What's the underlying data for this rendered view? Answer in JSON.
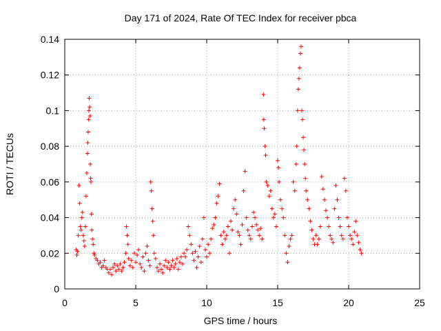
{
  "chart_data": {
    "type": "scatter",
    "title": "Day 171 of 2024, Rate Of TEC Index for receiver pbca",
    "xlabel": "GPS time / hours",
    "ylabel": "ROTI / TECUs",
    "xlim": [
      0,
      25
    ],
    "ylim": [
      0,
      0.14
    ],
    "xticks": [
      0,
      5,
      10,
      15,
      20,
      25
    ],
    "xtick_labels": [
      "0",
      "5",
      "10",
      "15",
      "20",
      "25"
    ],
    "yticks": [
      0,
      0.02,
      0.04,
      0.06,
      0.08,
      0.1,
      0.12,
      0.14
    ],
    "ytick_labels": [
      "0",
      "0.02",
      "0.04",
      "0.06",
      "0.08",
      "0.1",
      "0.12",
      "0.14"
    ],
    "grid": true,
    "marker": "plus",
    "color": "#ff0000",
    "series": [
      {
        "name": "ROTI",
        "points": [
          [
            0.8,
            0.022
          ],
          [
            0.85,
            0.019
          ],
          [
            0.9,
            0.021
          ],
          [
            0.95,
            0.03
          ],
          [
            1.0,
            0.058
          ],
          [
            1.05,
            0.048
          ],
          [
            1.1,
            0.035
          ],
          [
            1.15,
            0.033
          ],
          [
            1.2,
            0.04
          ],
          [
            1.25,
            0.043
          ],
          [
            1.3,
            0.03
          ],
          [
            1.35,
            0.027
          ],
          [
            1.4,
            0.024
          ],
          [
            1.45,
            0.035
          ],
          [
            1.5,
            0.052
          ],
          [
            1.55,
            0.065
          ],
          [
            1.6,
            0.076
          ],
          [
            1.62,
            0.082
          ],
          [
            1.65,
            0.088
          ],
          [
            1.68,
            0.095
          ],
          [
            1.7,
            0.1
          ],
          [
            1.72,
            0.107
          ],
          [
            1.75,
            0.102
          ],
          [
            1.78,
            0.097
          ],
          [
            1.8,
            0.07
          ],
          [
            1.82,
            0.062
          ],
          [
            1.85,
            0.06
          ],
          [
            1.88,
            0.042
          ],
          [
            1.9,
            0.033
          ],
          [
            1.95,
            0.028
          ],
          [
            2.0,
            0.025
          ],
          [
            2.05,
            0.02
          ],
          [
            2.1,
            0.019
          ],
          [
            2.2,
            0.017
          ],
          [
            2.3,
            0.016
          ],
          [
            2.4,
            0.014
          ],
          [
            2.5,
            0.015
          ],
          [
            2.6,
            0.012
          ],
          [
            2.7,
            0.013
          ],
          [
            2.8,
            0.016
          ],
          [
            2.9,
            0.012
          ],
          [
            3.0,
            0.011
          ],
          [
            3.1,
            0.009
          ],
          [
            3.2,
            0.011
          ],
          [
            3.3,
            0.008
          ],
          [
            3.4,
            0.012
          ],
          [
            3.5,
            0.014
          ],
          [
            3.6,
            0.01
          ],
          [
            3.7,
            0.013
          ],
          [
            3.8,
            0.011
          ],
          [
            3.9,
            0.014
          ],
          [
            4.0,
            0.01
          ],
          [
            4.1,
            0.012
          ],
          [
            4.2,
            0.015
          ],
          [
            4.3,
            0.02
          ],
          [
            4.35,
            0.035
          ],
          [
            4.4,
            0.03
          ],
          [
            4.45,
            0.025
          ],
          [
            4.5,
            0.017
          ],
          [
            4.6,
            0.013
          ],
          [
            4.7,
            0.016
          ],
          [
            4.8,
            0.012
          ],
          [
            4.9,
            0.02
          ],
          [
            5.0,
            0.015
          ],
          [
            5.1,
            0.019
          ],
          [
            5.2,
            0.022
          ],
          [
            5.3,
            0.014
          ],
          [
            5.4,
            0.012
          ],
          [
            5.5,
            0.018
          ],
          [
            5.6,
            0.01
          ],
          [
            5.7,
            0.02
          ],
          [
            5.8,
            0.024
          ],
          [
            5.9,
            0.016
          ],
          [
            6.0,
            0.013
          ],
          [
            6.05,
            0.06
          ],
          [
            6.1,
            0.055
          ],
          [
            6.15,
            0.045
          ],
          [
            6.2,
            0.038
          ],
          [
            6.25,
            0.03
          ],
          [
            6.3,
            0.02
          ],
          [
            6.4,
            0.017
          ],
          [
            6.5,
            0.012
          ],
          [
            6.6,
            0.01
          ],
          [
            6.7,
            0.014
          ],
          [
            6.8,
            0.011
          ],
          [
            6.9,
            0.009
          ],
          [
            7.0,
            0.013
          ],
          [
            7.1,
            0.016
          ],
          [
            7.2,
            0.012
          ],
          [
            7.3,
            0.015
          ],
          [
            7.4,
            0.011
          ],
          [
            7.5,
            0.013
          ],
          [
            7.6,
            0.016
          ],
          [
            7.7,
            0.012
          ],
          [
            7.8,
            0.014
          ],
          [
            7.9,
            0.017
          ],
          [
            8.0,
            0.011
          ],
          [
            8.1,
            0.015
          ],
          [
            8.2,
            0.018
          ],
          [
            8.3,
            0.014
          ],
          [
            8.4,
            0.02
          ],
          [
            8.5,
            0.018
          ],
          [
            8.6,
            0.022
          ],
          [
            8.7,
            0.035
          ],
          [
            8.8,
            0.03
          ],
          [
            8.9,
            0.025
          ],
          [
            9.0,
            0.02
          ],
          [
            9.1,
            0.016
          ],
          [
            9.2,
            0.021
          ],
          [
            9.3,
            0.012
          ],
          [
            9.4,
            0.018
          ],
          [
            9.5,
            0.024
          ],
          [
            9.6,
            0.015
          ],
          [
            9.7,
            0.028
          ],
          [
            9.8,
            0.04
          ],
          [
            9.9,
            0.022
          ],
          [
            10.0,
            0.018
          ],
          [
            10.1,
            0.025
          ],
          [
            10.2,
            0.02
          ],
          [
            10.3,
            0.028
          ],
          [
            10.4,
            0.034
          ],
          [
            10.5,
            0.036
          ],
          [
            10.6,
            0.04
          ],
          [
            10.7,
            0.048
          ],
          [
            10.8,
            0.052
          ],
          [
            10.9,
            0.059
          ],
          [
            11.0,
            0.03
          ],
          [
            11.1,
            0.025
          ],
          [
            11.2,
            0.032
          ],
          [
            11.3,
            0.028
          ],
          [
            11.4,
            0.03
          ],
          [
            11.5,
            0.035
          ],
          [
            11.6,
            0.02
          ],
          [
            11.7,
            0.038
          ],
          [
            11.8,
            0.033
          ],
          [
            11.9,
            0.045
          ],
          [
            12.0,
            0.05
          ],
          [
            12.1,
            0.042
          ],
          [
            12.2,
            0.032
          ],
          [
            12.3,
            0.03
          ],
          [
            12.4,
            0.025
          ],
          [
            12.5,
            0.036
          ],
          [
            12.6,
            0.055
          ],
          [
            12.7,
            0.066
          ],
          [
            12.8,
            0.04
          ],
          [
            12.9,
            0.033
          ],
          [
            13.0,
            0.03
          ],
          [
            13.1,
            0.028
          ],
          [
            13.2,
            0.035
          ],
          [
            13.3,
            0.043
          ],
          [
            13.4,
            0.04
          ],
          [
            13.5,
            0.036
          ],
          [
            13.6,
            0.033
          ],
          [
            13.7,
            0.03
          ],
          [
            13.8,
            0.034
          ],
          [
            13.9,
            0.028
          ],
          [
            14.0,
            0.109
          ],
          [
            14.02,
            0.095
          ],
          [
            14.05,
            0.09
          ],
          [
            14.1,
            0.08
          ],
          [
            14.15,
            0.075
          ],
          [
            14.2,
            0.06
          ],
          [
            14.3,
            0.058
          ],
          [
            14.4,
            0.052
          ],
          [
            14.5,
            0.055
          ],
          [
            14.6,
            0.045
          ],
          [
            14.7,
            0.04
          ],
          [
            14.8,
            0.042
          ],
          [
            14.9,
            0.035
          ],
          [
            15.0,
            0.072
          ],
          [
            15.05,
            0.068
          ],
          [
            15.1,
            0.06
          ],
          [
            15.2,
            0.05
          ],
          [
            15.3,
            0.045
          ],
          [
            15.4,
            0.04
          ],
          [
            15.5,
            0.03
          ],
          [
            15.6,
            0.02
          ],
          [
            15.7,
            0.015
          ],
          [
            15.8,
            0.024
          ],
          [
            15.9,
            0.028
          ],
          [
            16.0,
            0.03
          ],
          [
            16.1,
            0.06
          ],
          [
            16.2,
            0.055
          ],
          [
            16.3,
            0.07
          ],
          [
            16.35,
            0.08
          ],
          [
            16.4,
            0.1
          ],
          [
            16.45,
            0.112
          ],
          [
            16.5,
            0.118
          ],
          [
            16.55,
            0.124
          ],
          [
            16.6,
            0.132
          ],
          [
            16.65,
            0.136
          ],
          [
            16.7,
            0.1
          ],
          [
            16.75,
            0.095
          ],
          [
            16.8,
            0.085
          ],
          [
            16.85,
            0.078
          ],
          [
            16.9,
            0.07
          ],
          [
            16.95,
            0.062
          ],
          [
            17.0,
            0.055
          ],
          [
            17.1,
            0.05
          ],
          [
            17.2,
            0.045
          ],
          [
            17.3,
            0.038
          ],
          [
            17.4,
            0.033
          ],
          [
            17.5,
            0.028
          ],
          [
            17.6,
            0.025
          ],
          [
            17.7,
            0.03
          ],
          [
            17.8,
            0.025
          ],
          [
            17.9,
            0.028
          ],
          [
            18.0,
            0.035
          ],
          [
            18.1,
            0.063
          ],
          [
            18.2,
            0.056
          ],
          [
            18.3,
            0.05
          ],
          [
            18.4,
            0.044
          ],
          [
            18.5,
            0.04
          ],
          [
            18.6,
            0.035
          ],
          [
            18.7,
            0.03
          ],
          [
            18.8,
            0.028
          ],
          [
            18.9,
            0.026
          ],
          [
            19.0,
            0.045
          ],
          [
            19.1,
            0.058
          ],
          [
            19.2,
            0.05
          ],
          [
            19.3,
            0.04
          ],
          [
            19.4,
            0.035
          ],
          [
            19.5,
            0.03
          ],
          [
            19.6,
            0.028
          ],
          [
            19.7,
            0.062
          ],
          [
            19.8,
            0.055
          ],
          [
            19.9,
            0.04
          ],
          [
            20.0,
            0.035
          ],
          [
            20.1,
            0.03
          ],
          [
            20.2,
            0.028
          ],
          [
            20.3,
            0.025
          ],
          [
            20.4,
            0.032
          ],
          [
            20.5,
            0.038
          ],
          [
            20.6,
            0.03
          ],
          [
            20.7,
            0.026
          ],
          [
            20.8,
            0.022
          ],
          [
            20.9,
            0.02
          ]
        ]
      }
    ]
  }
}
